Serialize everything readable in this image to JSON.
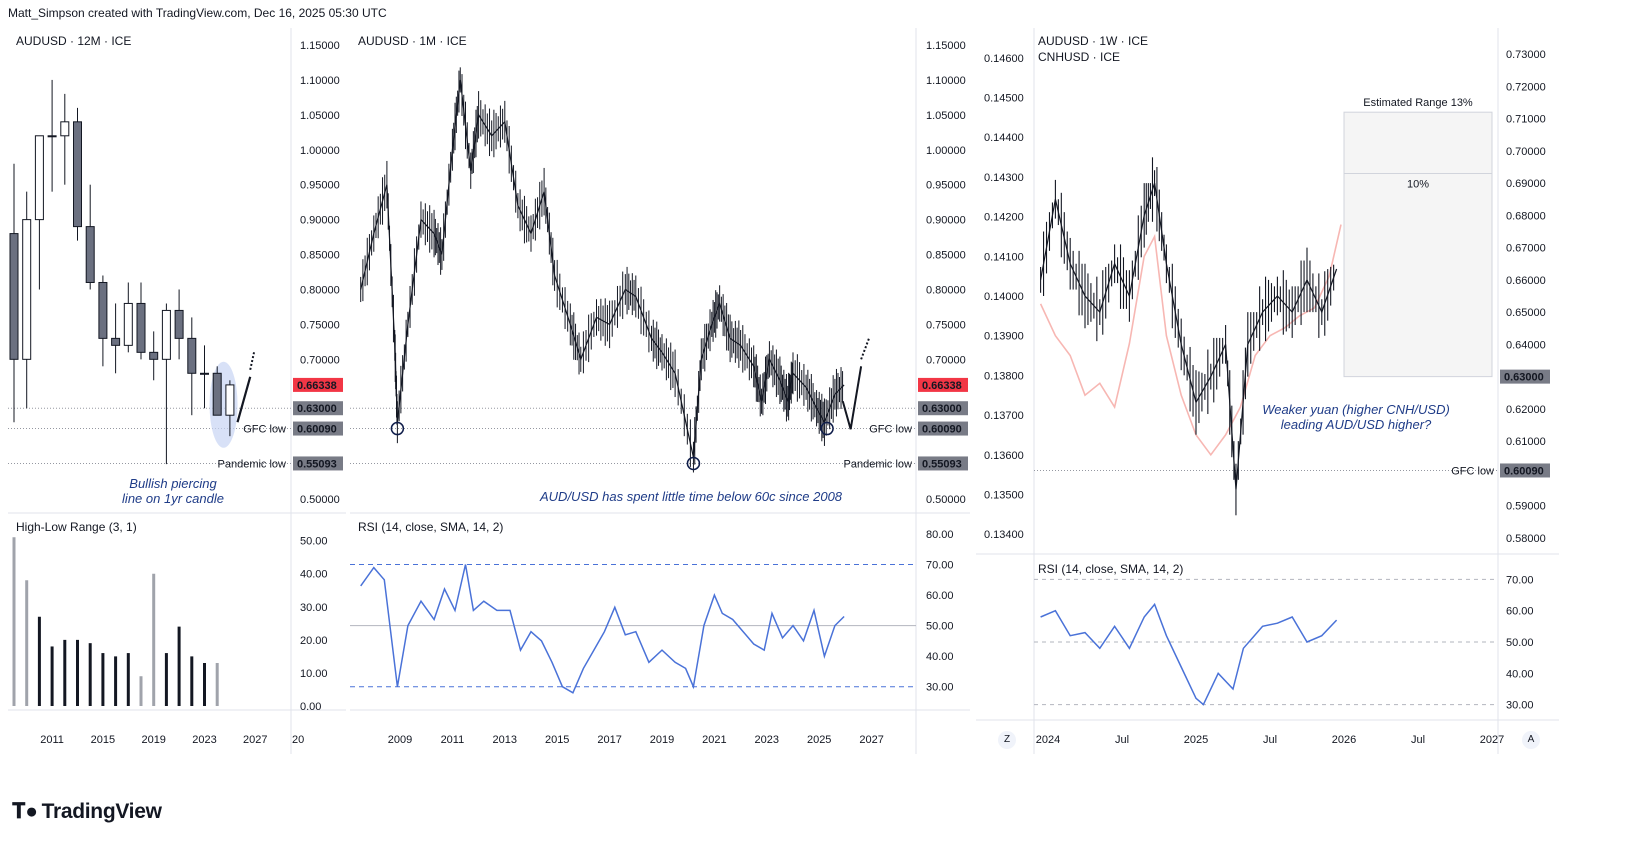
{
  "header": {
    "credit": "Matt_Simpson created with TradingView.com, Dec 16, 2025 05:30 UTC"
  },
  "brand": {
    "name": "TradingView",
    "logo_icon": "tradingview-logo"
  },
  "colors": {
    "up_candle": "#ffffff",
    "down_candle": "#6b7080",
    "rsi_line": "#4a72d8",
    "price_badge": "#f23645",
    "level_badge": "#787b86",
    "cnh_line": "#f7b7b3",
    "annotation": "#1f3c88",
    "circle": "#0f1d4a"
  },
  "panels": {
    "left": {
      "title": "AUDUSD · 12M · ICE",
      "annotation_lines": [
        "Bullish piercing",
        "line on 1yr candle"
      ],
      "sub_title": "High-Low Range (3, 1)"
    },
    "middle": {
      "title": "AUDUSD · 1M · ICE",
      "annotation": "AUD/USD has spent little time below 60c since 2008",
      "sub_title": "RSI (14, close, SMA, 14, 2)"
    },
    "right": {
      "title_line1": "AUDUSD · 1W · ICE",
      "title_line2": "CNHUSD · ICE",
      "range_label": "Estimated Range 13%",
      "range_inner_label": "10%",
      "annotation_lines": [
        "Weaker yuan (higher CNH/USD)",
        "leading AUD/USD higher?"
      ],
      "sub_title": "RSI (14, close, SMA, 14, 2)",
      "buttons": {
        "left": "Z",
        "right": "A"
      }
    }
  },
  "chart_data": [
    {
      "type": "candlestick",
      "title": "AUDUSD · 12M · ICE",
      "x_tick_labels": [
        "2011",
        "2015",
        "2019",
        "2023",
        "2027",
        "20"
      ],
      "y_tick_labels": [
        "1.15000",
        "1.10000",
        "1.05000",
        "1.00000",
        "0.95000",
        "0.90000",
        "0.85000",
        "0.80000",
        "0.75000",
        "0.70000",
        "0.60090",
        "0.55093",
        "0.50000"
      ],
      "ylim": [
        0.48,
        1.16
      ],
      "price_labels": [
        {
          "text": "0.66338",
          "value": 0.66338,
          "kind": "price"
        },
        {
          "text": "0.63000",
          "value": 0.63,
          "kind": "level"
        },
        {
          "text": "0.60090",
          "value": 0.6009,
          "kind": "level"
        },
        {
          "text": "0.55093",
          "value": 0.55093,
          "kind": "level"
        }
      ],
      "level_lines": [
        {
          "value": 0.6009,
          "label": "GFC low"
        },
        {
          "value": 0.55093,
          "label": "Pandemic low"
        },
        {
          "value": 0.63,
          "label": ""
        }
      ],
      "candles": [
        {
          "year": 2008,
          "open": 0.88,
          "high": 0.98,
          "low": 0.61,
          "close": 0.7
        },
        {
          "year": 2009,
          "open": 0.7,
          "high": 0.94,
          "low": 0.63,
          "close": 0.9
        },
        {
          "year": 2010,
          "open": 0.9,
          "high": 1.02,
          "low": 0.8,
          "close": 1.02
        },
        {
          "year": 2011,
          "open": 1.02,
          "high": 1.1,
          "low": 0.94,
          "close": 1.02
        },
        {
          "year": 2012,
          "open": 1.02,
          "high": 1.08,
          "low": 0.95,
          "close": 1.04
        },
        {
          "year": 2013,
          "open": 1.04,
          "high": 1.06,
          "low": 0.87,
          "close": 0.89
        },
        {
          "year": 2014,
          "open": 0.89,
          "high": 0.95,
          "low": 0.8,
          "close": 0.81
        },
        {
          "year": 2015,
          "open": 0.81,
          "high": 0.82,
          "low": 0.69,
          "close": 0.73
        },
        {
          "year": 2016,
          "open": 0.73,
          "high": 0.78,
          "low": 0.68,
          "close": 0.72
        },
        {
          "year": 2017,
          "open": 0.72,
          "high": 0.81,
          "low": 0.71,
          "close": 0.78
        },
        {
          "year": 2018,
          "open": 0.78,
          "high": 0.81,
          "low": 0.7,
          "close": 0.71
        },
        {
          "year": 2019,
          "open": 0.71,
          "high": 0.74,
          "low": 0.67,
          "close": 0.7
        },
        {
          "year": 2020,
          "open": 0.7,
          "high": 0.78,
          "low": 0.55,
          "close": 0.77
        },
        {
          "year": 2021,
          "open": 0.77,
          "high": 0.8,
          "low": 0.7,
          "close": 0.73
        },
        {
          "year": 2022,
          "open": 0.73,
          "high": 0.76,
          "low": 0.62,
          "close": 0.68
        },
        {
          "year": 2023,
          "open": 0.68,
          "high": 0.72,
          "low": 0.63,
          "close": 0.68
        },
        {
          "year": 2024,
          "open": 0.68,
          "high": 0.69,
          "low": 0.62,
          "close": 0.62
        },
        {
          "year": 2025,
          "open": 0.62,
          "high": 0.67,
          "low": 0.59,
          "close": 0.66338
        }
      ],
      "sub_chart": {
        "title": "High-Low Range (3, 1)",
        "y_tick_labels": [
          "50.00",
          "40.00",
          "30.00",
          "20.00",
          "10.00",
          "0.00"
        ],
        "ylim": [
          0,
          52
        ],
        "values": [
          51,
          38,
          27,
          18,
          20,
          20,
          19,
          16,
          15,
          16,
          9,
          40,
          16,
          24,
          15,
          13,
          13
        ],
        "colors_grey_index": [
          0,
          1,
          10,
          11,
          16
        ]
      }
    },
    {
      "type": "candlestick",
      "title": "AUDUSD · 1M · ICE",
      "x_tick_labels": [
        "2009",
        "2011",
        "2013",
        "2015",
        "2017",
        "2019",
        "2021",
        "2023",
        "2025",
        "2027"
      ],
      "y_tick_labels": [
        "1.15000",
        "1.10000",
        "1.05000",
        "1.00000",
        "0.95000",
        "0.90000",
        "0.85000",
        "0.80000",
        "0.75000",
        "0.70000",
        "0.60090",
        "0.55093",
        "0.50000"
      ],
      "ylim": [
        0.48,
        1.16
      ],
      "price_labels": [
        {
          "text": "0.66338",
          "value": 0.66338,
          "kind": "price"
        },
        {
          "text": "0.63000",
          "value": 0.63,
          "kind": "level"
        },
        {
          "text": "0.60090",
          "value": 0.6009,
          "kind": "level"
        },
        {
          "text": "0.55093",
          "value": 0.55093,
          "kind": "level"
        }
      ],
      "level_lines": [
        {
          "value": 0.6009,
          "label": "GFC low"
        },
        {
          "value": 0.55093,
          "label": "Pandemic low"
        },
        {
          "value": 0.63,
          "label": ""
        }
      ],
      "path_points": [
        [
          2007.5,
          0.8
        ],
        [
          2008.0,
          0.88
        ],
        [
          2008.5,
          0.95
        ],
        [
          2008.8,
          0.72
        ],
        [
          2008.9,
          0.61
        ],
        [
          2009.3,
          0.75
        ],
        [
          2009.8,
          0.9
        ],
        [
          2010.3,
          0.88
        ],
        [
          2010.6,
          0.85
        ],
        [
          2011.0,
          1.0
        ],
        [
          2011.3,
          1.1
        ],
        [
          2011.7,
          0.97
        ],
        [
          2012.0,
          1.05
        ],
        [
          2012.5,
          1.02
        ],
        [
          2013.0,
          1.04
        ],
        [
          2013.5,
          0.92
        ],
        [
          2014.0,
          0.88
        ],
        [
          2014.5,
          0.94
        ],
        [
          2014.9,
          0.82
        ],
        [
          2015.5,
          0.75
        ],
        [
          2015.9,
          0.7
        ],
        [
          2016.5,
          0.76
        ],
        [
          2017.0,
          0.75
        ],
        [
          2017.6,
          0.8
        ],
        [
          2018.0,
          0.79
        ],
        [
          2018.6,
          0.73
        ],
        [
          2019.0,
          0.71
        ],
        [
          2019.5,
          0.68
        ],
        [
          2020.2,
          0.56
        ],
        [
          2020.5,
          0.7
        ],
        [
          2020.9,
          0.75
        ],
        [
          2021.2,
          0.78
        ],
        [
          2021.6,
          0.73
        ],
        [
          2022.0,
          0.72
        ],
        [
          2022.5,
          0.69
        ],
        [
          2022.8,
          0.64
        ],
        [
          2023.1,
          0.7
        ],
        [
          2023.5,
          0.67
        ],
        [
          2023.8,
          0.64
        ],
        [
          2024.0,
          0.68
        ],
        [
          2024.5,
          0.66
        ],
        [
          2024.9,
          0.63
        ],
        [
          2025.2,
          0.61
        ],
        [
          2025.6,
          0.65
        ],
        [
          2025.95,
          0.66338
        ]
      ],
      "circles": [
        {
          "x": 2008.9,
          "y": 0.6009
        },
        {
          "x": 2020.2,
          "y": 0.55093
        },
        {
          "x": 2025.3,
          "y": 0.6009
        }
      ],
      "sub_chart": {
        "title": "RSI (14, close, SMA, 14, 2)",
        "y_tick_labels": [
          "80.00",
          "70.00",
          "60.00",
          "50.00",
          "40.00",
          "30.00"
        ],
        "ylim": [
          25,
          80
        ],
        "bands": [
          70,
          30
        ],
        "midline": 50,
        "points": [
          [
            2007.5,
            63
          ],
          [
            2008.0,
            69
          ],
          [
            2008.4,
            65
          ],
          [
            2008.9,
            30
          ],
          [
            2009.3,
            50
          ],
          [
            2009.8,
            58
          ],
          [
            2010.3,
            52
          ],
          [
            2010.7,
            62
          ],
          [
            2011.1,
            55
          ],
          [
            2011.5,
            70
          ],
          [
            2011.8,
            55
          ],
          [
            2012.2,
            58
          ],
          [
            2012.7,
            55
          ],
          [
            2013.2,
            55
          ],
          [
            2013.6,
            42
          ],
          [
            2014.0,
            48
          ],
          [
            2014.4,
            45
          ],
          [
            2014.8,
            38
          ],
          [
            2015.2,
            30
          ],
          [
            2015.6,
            28
          ],
          [
            2016.0,
            36
          ],
          [
            2016.4,
            42
          ],
          [
            2016.8,
            48
          ],
          [
            2017.2,
            56
          ],
          [
            2017.6,
            47
          ],
          [
            2018.0,
            48
          ],
          [
            2018.5,
            38
          ],
          [
            2019.0,
            42
          ],
          [
            2019.5,
            38
          ],
          [
            2019.9,
            36
          ],
          [
            2020.2,
            30
          ],
          [
            2020.6,
            50
          ],
          [
            2021.0,
            60
          ],
          [
            2021.3,
            54
          ],
          [
            2021.7,
            52
          ],
          [
            2022.1,
            48
          ],
          [
            2022.5,
            44
          ],
          [
            2022.9,
            42
          ],
          [
            2023.2,
            54
          ],
          [
            2023.6,
            46
          ],
          [
            2024.0,
            50
          ],
          [
            2024.4,
            45
          ],
          [
            2024.8,
            55
          ],
          [
            2025.2,
            40
          ],
          [
            2025.6,
            50
          ],
          [
            2025.95,
            53
          ]
        ]
      }
    },
    {
      "type": "candlestick",
      "title": "AUDUSD · 1W · ICE",
      "x_tick_labels": [
        "2024",
        "Jul",
        "2025",
        "Jul",
        "2026",
        "Jul",
        "2027"
      ],
      "left_y_tick_labels": [
        "0.14600",
        "0.14500",
        "0.14400",
        "0.14300",
        "0.14200",
        "0.14100",
        "0.14000",
        "0.13900",
        "0.13800",
        "0.13700",
        "0.13600",
        "0.13500",
        "0.13400"
      ],
      "right_y_tick_labels": [
        "0.73000",
        "0.72000",
        "0.71000",
        "0.70000",
        "0.69000",
        "0.68000",
        "0.67000",
        "0.66000",
        "0.65000",
        "0.64000",
        "0.63000",
        "0.62000",
        "0.61000",
        "0.60090",
        "0.59000",
        "0.58000"
      ],
      "ylim_right": [
        0.575,
        0.735
      ],
      "ylim_left": [
        0.1335,
        0.1465
      ],
      "price_labels": [
        {
          "text": "0.63000",
          "value": 0.63,
          "kind": "level"
        },
        {
          "text": "0.60090",
          "value": 0.6009,
          "kind": "level"
        }
      ],
      "level_lines": [
        {
          "value": 0.6009,
          "label": "GFC low"
        }
      ],
      "estimated_range": {
        "label": "Estimated Range 13%",
        "from": 0.63,
        "to": 0.712,
        "inner_label": "10%",
        "inner_to": 0.693
      },
      "audusd_points": [
        [
          2023.95,
          0.66
        ],
        [
          2024.05,
          0.685
        ],
        [
          2024.15,
          0.665
        ],
        [
          2024.25,
          0.655
        ],
        [
          2024.35,
          0.65
        ],
        [
          2024.45,
          0.665
        ],
        [
          2024.55,
          0.655
        ],
        [
          2024.65,
          0.68
        ],
        [
          2024.72,
          0.69
        ],
        [
          2024.8,
          0.665
        ],
        [
          2024.9,
          0.64
        ],
        [
          2025.0,
          0.622
        ],
        [
          2025.1,
          0.63
        ],
        [
          2025.2,
          0.64
        ],
        [
          2025.27,
          0.595
        ],
        [
          2025.35,
          0.64
        ],
        [
          2025.45,
          0.65
        ],
        [
          2025.55,
          0.655
        ],
        [
          2025.65,
          0.65
        ],
        [
          2025.75,
          0.66
        ],
        [
          2025.85,
          0.65
        ],
        [
          2025.95,
          0.66338
        ]
      ],
      "cnhusd_points": [
        [
          2023.95,
          0.1398
        ],
        [
          2024.05,
          0.139
        ],
        [
          2024.15,
          0.1385
        ],
        [
          2024.25,
          0.1375
        ],
        [
          2024.35,
          0.1378
        ],
        [
          2024.45,
          0.1372
        ],
        [
          2024.55,
          0.1388
        ],
        [
          2024.65,
          0.141
        ],
        [
          2024.72,
          0.1415
        ],
        [
          2024.8,
          0.139
        ],
        [
          2024.9,
          0.1375
        ],
        [
          2025.0,
          0.1365
        ],
        [
          2025.1,
          0.136
        ],
        [
          2025.2,
          0.1365
        ],
        [
          2025.3,
          0.1372
        ],
        [
          2025.4,
          0.1385
        ],
        [
          2025.5,
          0.139
        ],
        [
          2025.6,
          0.1392
        ],
        [
          2025.7,
          0.1395
        ],
        [
          2025.8,
          0.1397
        ],
        [
          2025.9,
          0.1405
        ],
        [
          2025.98,
          0.1418
        ]
      ],
      "sub_chart": {
        "title": "RSI (14, close, SMA, 14, 2)",
        "y_tick_labels": [
          "70.00",
          "60.00",
          "50.00",
          "40.00",
          "30.00"
        ],
        "ylim": [
          27,
          73
        ],
        "bands": [
          70,
          30
        ],
        "midline": 50,
        "points": [
          [
            2023.95,
            58
          ],
          [
            2024.05,
            60
          ],
          [
            2024.15,
            52
          ],
          [
            2024.25,
            53
          ],
          [
            2024.35,
            48
          ],
          [
            2024.45,
            55
          ],
          [
            2024.55,
            48
          ],
          [
            2024.65,
            58
          ],
          [
            2024.72,
            62
          ],
          [
            2024.8,
            52
          ],
          [
            2024.9,
            42
          ],
          [
            2025.0,
            32
          ],
          [
            2025.05,
            30
          ],
          [
            2025.15,
            40
          ],
          [
            2025.25,
            35
          ],
          [
            2025.32,
            48
          ],
          [
            2025.45,
            55
          ],
          [
            2025.55,
            56
          ],
          [
            2025.65,
            58
          ],
          [
            2025.75,
            50
          ],
          [
            2025.85,
            52
          ],
          [
            2025.95,
            57
          ]
        ]
      }
    }
  ],
  "left_axis_labels": [
    "GFC low",
    "Pandemic low"
  ]
}
